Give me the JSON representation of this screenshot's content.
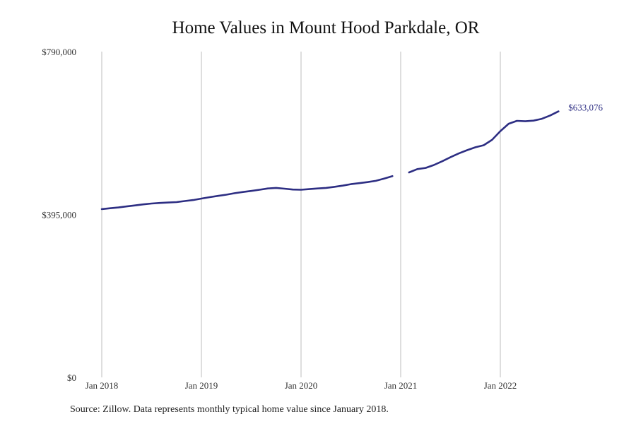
{
  "chart_data": {
    "type": "line",
    "title": "Home Values in Mount Hood Parkdale, OR",
    "xlabel": "",
    "ylabel": "",
    "source": "Source: Zillow. Data represents monthly typical home value since January 2018.",
    "x_ticks": [
      "Jan 2018",
      "Jan 2019",
      "Jan 2020",
      "Jan 2021",
      "Jan 2022"
    ],
    "y_ticks": [
      "$0",
      "$395,000",
      "$790,000"
    ],
    "ylim": [
      0,
      790000
    ],
    "xlim": [
      "2018-01",
      "2022-12"
    ],
    "grid": "vertical",
    "series_color": "#2d2e83",
    "end_label": "$633,076",
    "series": [
      {
        "points": [
          [
            "2018-01",
            408000
          ],
          [
            "2018-02",
            410000
          ],
          [
            "2018-03",
            412000
          ],
          [
            "2018-04",
            414500
          ],
          [
            "2018-05",
            417000
          ],
          [
            "2018-06",
            419500
          ],
          [
            "2018-07",
            421500
          ],
          [
            "2018-08",
            423000
          ],
          [
            "2018-09",
            424000
          ],
          [
            "2018-10",
            425000
          ],
          [
            "2018-11",
            427500
          ],
          [
            "2018-12",
            430000
          ],
          [
            "2019-01",
            433500
          ],
          [
            "2019-02",
            437000
          ],
          [
            "2019-03",
            440000
          ],
          [
            "2019-04",
            443000
          ],
          [
            "2019-05",
            446500
          ],
          [
            "2019-06",
            449500
          ],
          [
            "2019-07",
            452000
          ],
          [
            "2019-08",
            455000
          ],
          [
            "2019-09",
            458000
          ],
          [
            "2019-10",
            459500
          ],
          [
            "2019-11",
            457500
          ],
          [
            "2019-12",
            455500
          ],
          [
            "2020-01",
            455000
          ],
          [
            "2020-02",
            456500
          ],
          [
            "2020-03",
            458000
          ],
          [
            "2020-04",
            459500
          ],
          [
            "2020-05",
            462000
          ],
          [
            "2020-06",
            465000
          ],
          [
            "2020-07",
            468500
          ],
          [
            "2020-08",
            471000
          ],
          [
            "2020-09",
            473500
          ],
          [
            "2020-10",
            476500
          ],
          [
            "2020-11",
            482000
          ],
          [
            "2020-12",
            488000
          ],
          null,
          [
            "2021-02",
            497000
          ],
          [
            "2021-03",
            505000
          ],
          [
            "2021-04",
            508000
          ],
          [
            "2021-05",
            515000
          ],
          [
            "2021-06",
            524000
          ],
          [
            "2021-07",
            534000
          ],
          [
            "2021-08",
            543000
          ],
          [
            "2021-09",
            551000
          ],
          [
            "2021-10",
            558000
          ],
          [
            "2021-11",
            563000
          ],
          [
            "2021-12",
            576000
          ],
          [
            "2022-01",
            597000
          ],
          [
            "2022-02",
            615000
          ],
          [
            "2022-03",
            622000
          ],
          [
            "2022-04",
            621000
          ],
          [
            "2022-05",
            622500
          ],
          [
            "2022-06",
            627000
          ],
          [
            "2022-07",
            635000
          ],
          [
            "2022-08",
            645000
          ]
        ]
      }
    ]
  }
}
